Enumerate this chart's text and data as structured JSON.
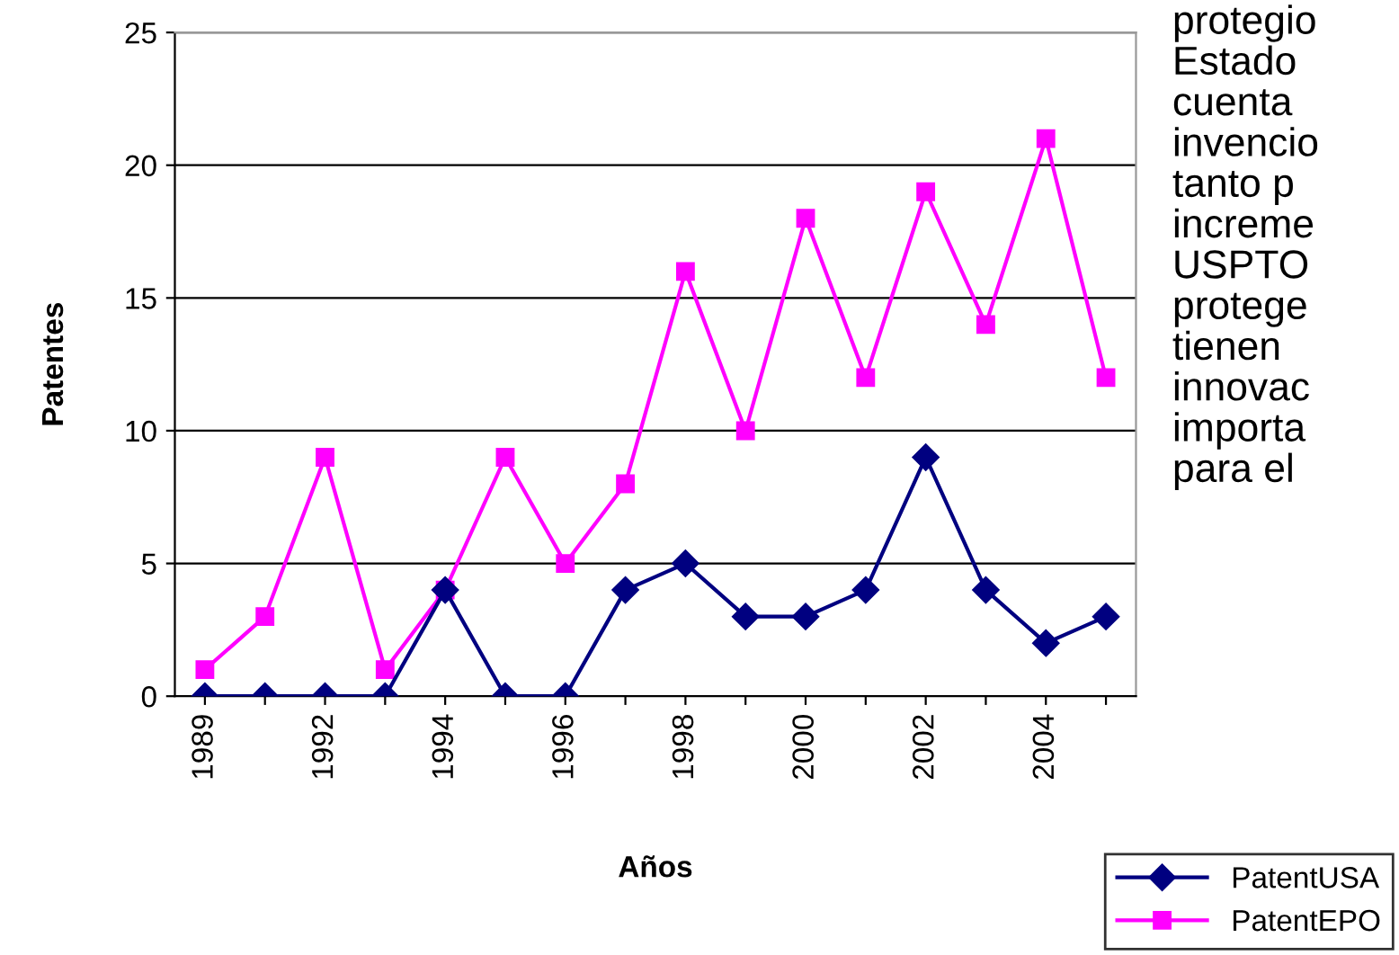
{
  "chart_data": {
    "type": "line",
    "xlabel": "Años",
    "ylabel": "Patentes",
    "categories": [
      "1989",
      null,
      "1992",
      null,
      "1994",
      null,
      "1996",
      null,
      "1998",
      null,
      "2000",
      null,
      "2002",
      null,
      "2004",
      null
    ],
    "series": [
      {
        "name": "PatentUSA",
        "color": "#000080",
        "marker": "diamond",
        "values": [
          0,
          0,
          0,
          0,
          4,
          0,
          0,
          4,
          5,
          3,
          3,
          4,
          9,
          4,
          2,
          3
        ]
      },
      {
        "name": "PatentEPO",
        "color": "#ff00ff",
        "marker": "square",
        "values": [
          1,
          3,
          9,
          1,
          4,
          9,
          5,
          8,
          16,
          10,
          18,
          12,
          19,
          14,
          21,
          12
        ]
      }
    ],
    "ylim": [
      0,
      25
    ],
    "yticks": [
      0,
      5,
      10,
      15,
      20,
      25
    ],
    "grid": "y",
    "legend": "bottom right",
    "line_style": "solid",
    "annotations": [
      "protegio\nEstado\ncuenta\ninvencio\ntanto p\nincreme\nUSPTO\nprotege\ntienen\ninnovac\nimporta\npara el"
    ]
  }
}
